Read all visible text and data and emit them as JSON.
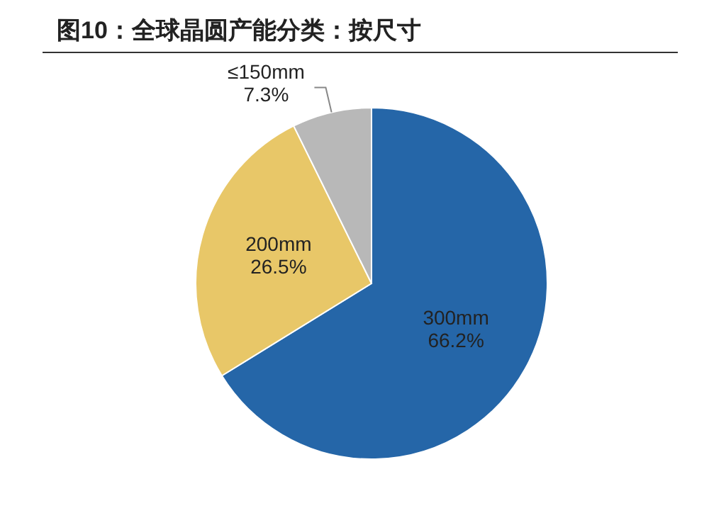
{
  "chart_data": {
    "type": "pie",
    "title": "图10：全球晶圆产能分类：按尺寸",
    "categories": [
      "300mm",
      "200mm",
      "≤150mm"
    ],
    "values": [
      66.2,
      26.5,
      7.3
    ],
    "value_labels": [
      "66.2%",
      "26.5%",
      "7.3%"
    ],
    "colors": [
      "#2566a8",
      "#e8c768",
      "#b8b8b8"
    ]
  }
}
